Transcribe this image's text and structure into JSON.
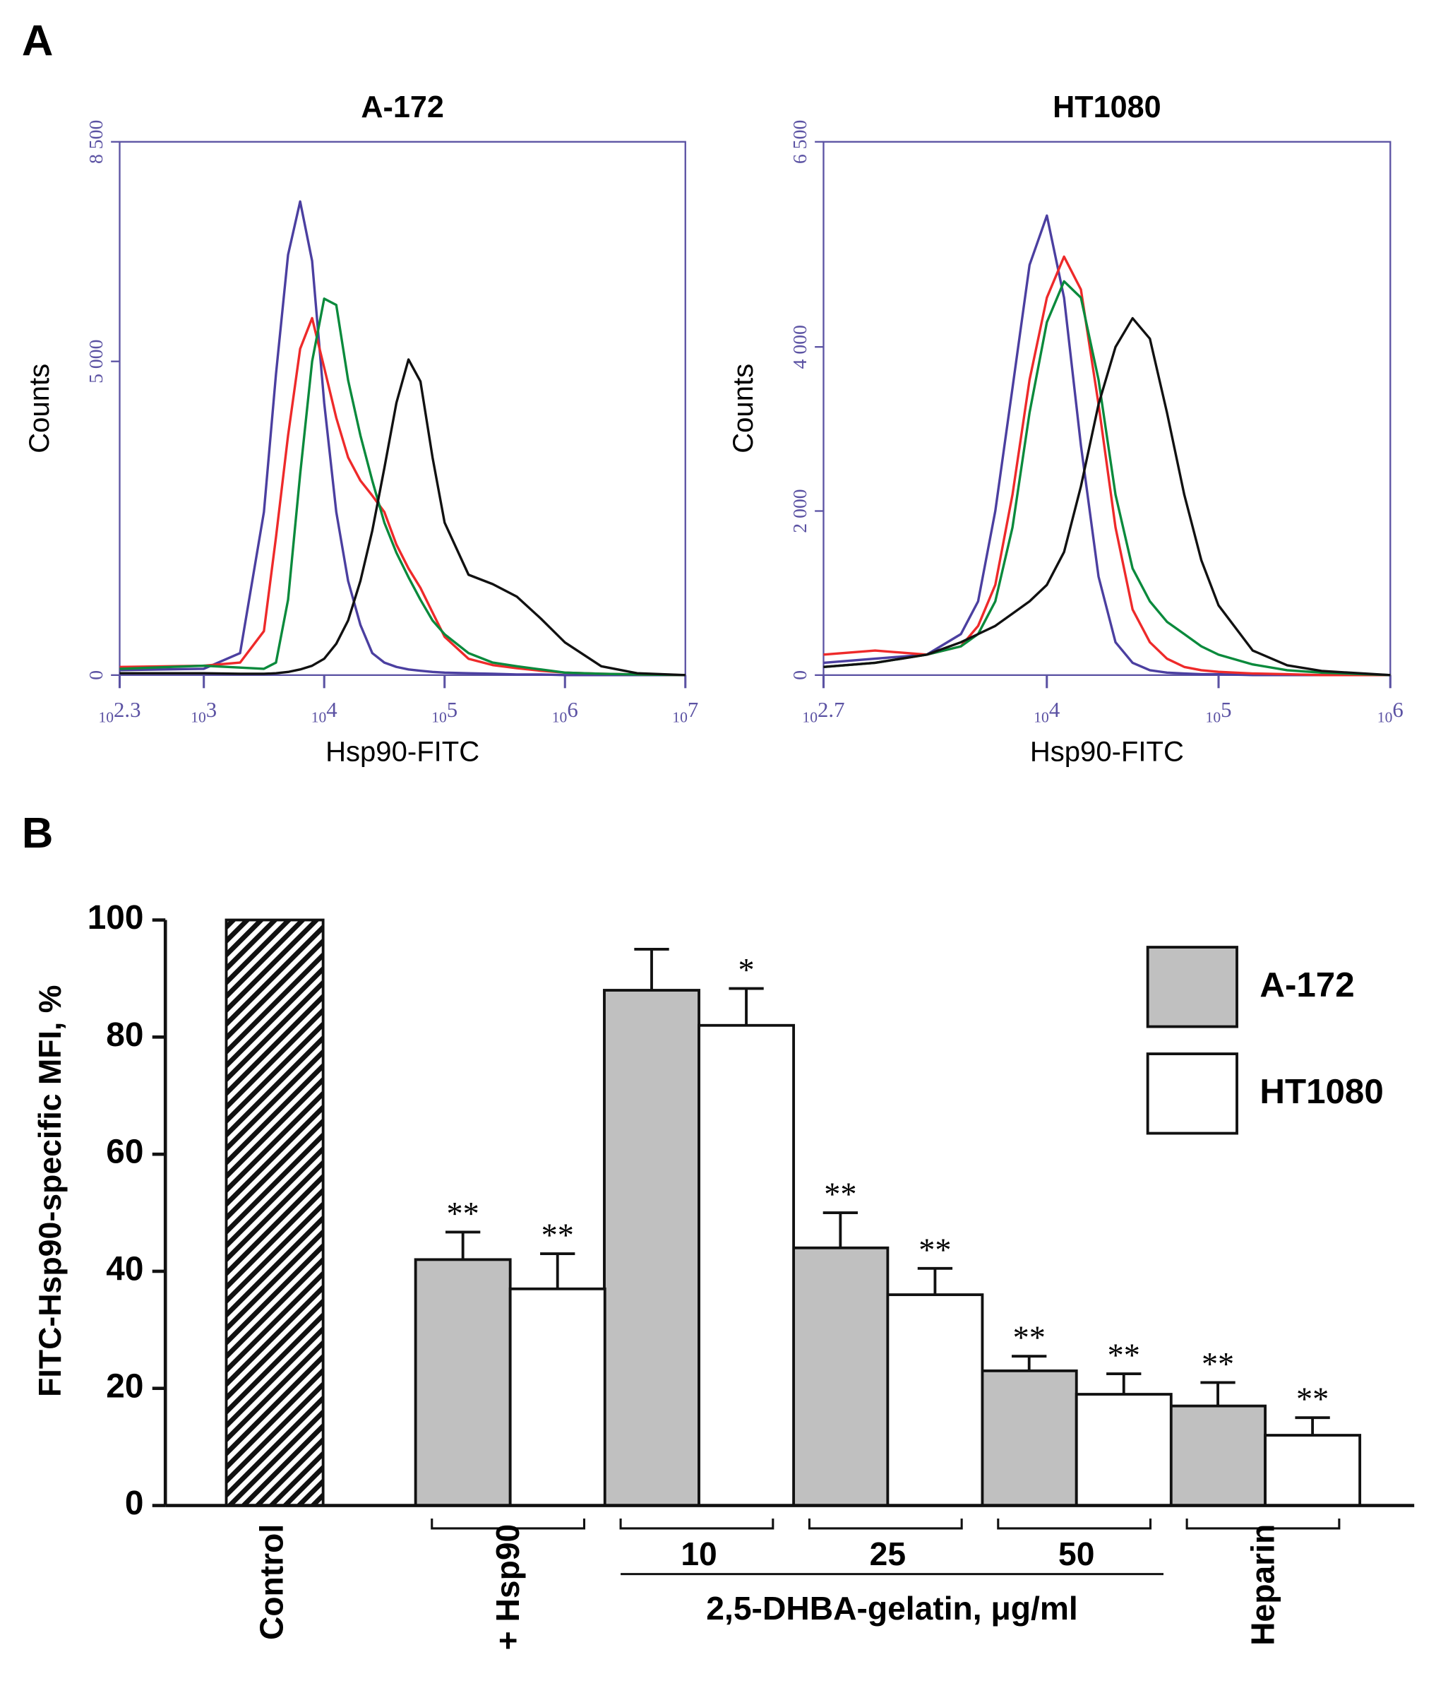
{
  "panel_labels": [
    "A",
    "B"
  ],
  "chart_data": [
    {
      "type": "line",
      "title": "A-172",
      "xlabel": "Hsp90-FITC",
      "ylabel": "Counts",
      "xscale": "log",
      "xlim": [
        200,
        10000000
      ],
      "xticks": [
        {
          "value": 200,
          "label": "10^2.3"
        },
        {
          "value": 1000,
          "label": "10^3"
        },
        {
          "value": 10000,
          "label": "10^4"
        },
        {
          "value": 100000,
          "label": "10^5"
        },
        {
          "value": 1000000,
          "label": "10^6"
        },
        {
          "value": 10000000,
          "label": "10^7"
        }
      ],
      "ylim": [
        0,
        8500
      ],
      "yticks": [
        0,
        {
          "value": 5000,
          "label": "5 000"
        },
        {
          "value": 8500,
          "label": "8 500"
        }
      ],
      "x": [
        200,
        1000,
        2000,
        3160,
        3980,
        5010,
        6310,
        7940,
        10000,
        12600,
        15800,
        20000,
        25100,
        31600,
        39800,
        50100,
        63100,
        79400,
        100000,
        158000,
        251000,
        398000,
        631000,
        1000000,
        2000000,
        3980000,
        10000000
      ],
      "series": [
        {
          "color": "#4b3fa0",
          "values": [
            80,
            100,
            350,
            2600,
            4800,
            6700,
            7550,
            6600,
            4340,
            2600,
            1500,
            800,
            350,
            200,
            130,
            90,
            70,
            50,
            40,
            30,
            20,
            10,
            10,
            0,
            0,
            0,
            0
          ]
        },
        {
          "color": "#ee2a2a",
          "values": [
            130,
            150,
            200,
            700,
            2200,
            3820,
            5200,
            5690,
            4900,
            4100,
            3470,
            3100,
            2860,
            2600,
            2080,
            1700,
            1390,
            1000,
            610,
            260,
            160,
            110,
            70,
            40,
            20,
            10,
            0
          ]
        },
        {
          "color": "#0a8a3c",
          "values": [
            100,
            150,
            120,
            100,
            200,
            1200,
            3200,
            5000,
            6000,
            5900,
            4700,
            3820,
            3100,
            2430,
            1950,
            1560,
            1200,
            870,
            650,
            350,
            200,
            140,
            90,
            40,
            20,
            10,
            0
          ]
        },
        {
          "color": "#111111",
          "values": [
            30,
            30,
            20,
            20,
            30,
            50,
            90,
            150,
            260,
            500,
            870,
            1500,
            2300,
            3300,
            4340,
            5030,
            4680,
            3470,
            2430,
            1600,
            1450,
            1250,
            900,
            520,
            140,
            30,
            0
          ]
        }
      ]
    },
    {
      "type": "line",
      "title": "HT1080",
      "xlabel": "Hsp90-FITC",
      "ylabel": "Counts",
      "xscale": "log",
      "xlim": [
        501,
        1000000
      ],
      "xticks": [
        {
          "value": 501,
          "label": "10^2.7"
        },
        {
          "value": 10000,
          "label": "10^4"
        },
        {
          "value": 100000,
          "label": "10^5"
        },
        {
          "value": 1000000,
          "label": "10^6"
        }
      ],
      "ylim": [
        0,
        6500
      ],
      "yticks": [
        0,
        {
          "value": 2000,
          "label": "2 000"
        },
        {
          "value": 4000,
          "label": "4 000"
        },
        {
          "value": 6500,
          "label": "6 500"
        }
      ],
      "x": [
        501,
        1000,
        2000,
        3160,
        3980,
        5010,
        6310,
        7940,
        10000,
        12600,
        15800,
        20000,
        25100,
        31600,
        39800,
        50100,
        63100,
        79400,
        100000,
        158000,
        251000,
        398000,
        1000000
      ],
      "series": [
        {
          "color": "#4b3fa0",
          "values": [
            150,
            200,
            250,
            500,
            900,
            2000,
            3500,
            5000,
            5600,
            4600,
            2800,
            1200,
            400,
            150,
            60,
            30,
            20,
            10,
            10,
            0,
            0,
            0,
            0
          ]
        },
        {
          "color": "#ee2a2a",
          "values": [
            250,
            300,
            250,
            350,
            600,
            1100,
            2200,
            3600,
            4600,
            5100,
            4700,
            3300,
            1800,
            800,
            400,
            200,
            100,
            60,
            40,
            20,
            10,
            0,
            0
          ]
        },
        {
          "color": "#0a8a3c",
          "values": [
            100,
            150,
            250,
            350,
            500,
            900,
            1800,
            3200,
            4300,
            4800,
            4600,
            3600,
            2200,
            1300,
            900,
            650,
            500,
            350,
            250,
            130,
            60,
            30,
            0
          ]
        },
        {
          "color": "#111111",
          "values": [
            100,
            150,
            250,
            400,
            500,
            600,
            750,
            900,
            1100,
            1500,
            2300,
            3300,
            4000,
            4350,
            4100,
            3200,
            2200,
            1400,
            850,
            300,
            120,
            50,
            0
          ]
        }
      ]
    },
    {
      "type": "bar",
      "ylabel": "FITC-Hsp90-specific MFI, %",
      "categories": [
        "Control",
        "+ Hsp90",
        "10",
        "25",
        "50",
        "Heparin"
      ],
      "group_label": "2,5-DHBA-gelatin, μg/ml",
      "group_categories": [
        2,
        3,
        4
      ],
      "control_value": 100,
      "control_fill": "hatch",
      "ylim": [
        0,
        100
      ],
      "yticks": [
        0,
        20,
        40,
        60,
        80,
        100
      ],
      "series": [
        {
          "name": "A-172",
          "color": "#c0c0c0",
          "values": [
            null,
            42,
            88,
            44,
            23,
            17
          ],
          "errors": [
            null,
            4.7,
            7,
            6,
            2.5,
            4
          ],
          "annotations": [
            null,
            "**",
            null,
            "**",
            "**",
            "**"
          ]
        },
        {
          "name": "HT1080",
          "color": "#ffffff",
          "values": [
            null,
            37,
            82,
            36,
            19,
            12
          ],
          "errors": [
            null,
            6,
            6.3,
            4.5,
            3.5,
            3
          ],
          "annotations": [
            null,
            "**",
            "*",
            "**",
            "**",
            "**"
          ]
        }
      ]
    }
  ]
}
